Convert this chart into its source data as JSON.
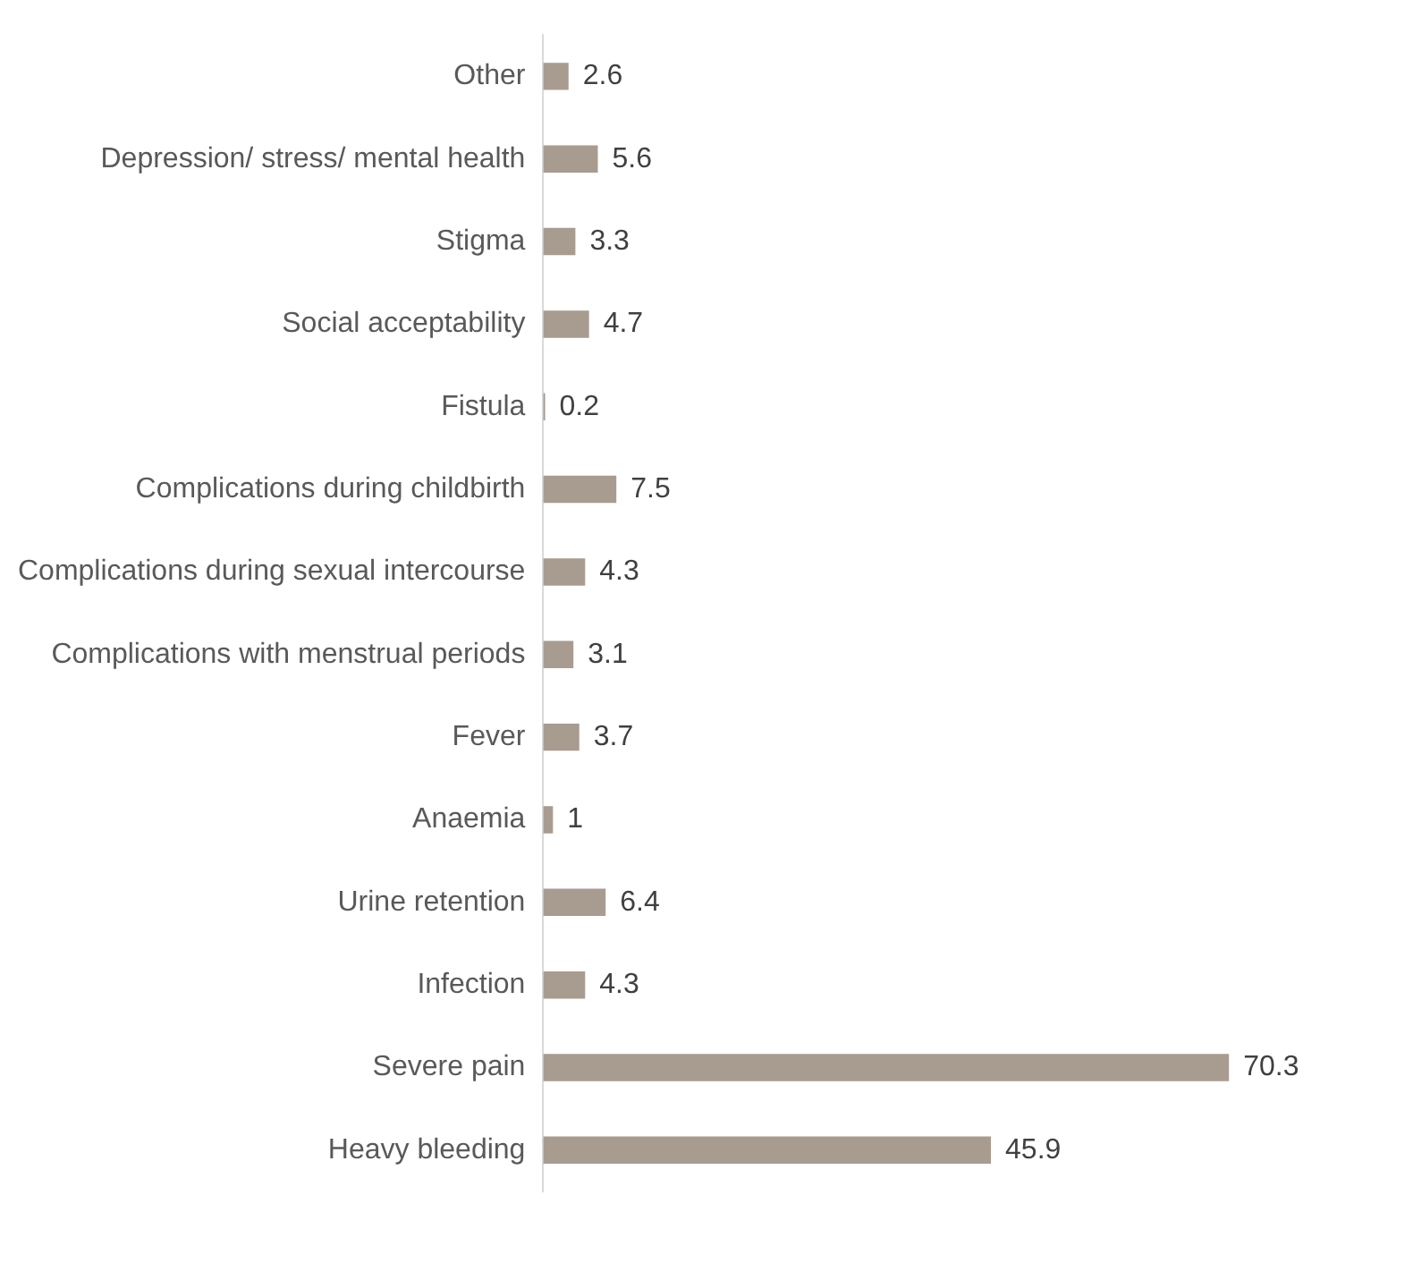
{
  "chart_data": {
    "type": "bar",
    "orientation": "horizontal",
    "categories": [
      "Other",
      "Depression/ stress/ mental health",
      "Stigma",
      "Social acceptability",
      "Fistula",
      "Complications during childbirth",
      "Complications during sexual intercourse",
      "Complications with menstrual periods",
      "Fever",
      "Anaemia",
      "Urine retention",
      "Infection",
      "Severe pain",
      "Heavy bleeding"
    ],
    "values": [
      2.6,
      5.6,
      3.3,
      4.7,
      0.2,
      7.5,
      4.3,
      3.1,
      3.7,
      1,
      6.4,
      4.3,
      70.3,
      45.9
    ],
    "color": "#a89b90",
    "data_labels": true,
    "grid": false,
    "legend": false,
    "tick_labels": "y"
  }
}
